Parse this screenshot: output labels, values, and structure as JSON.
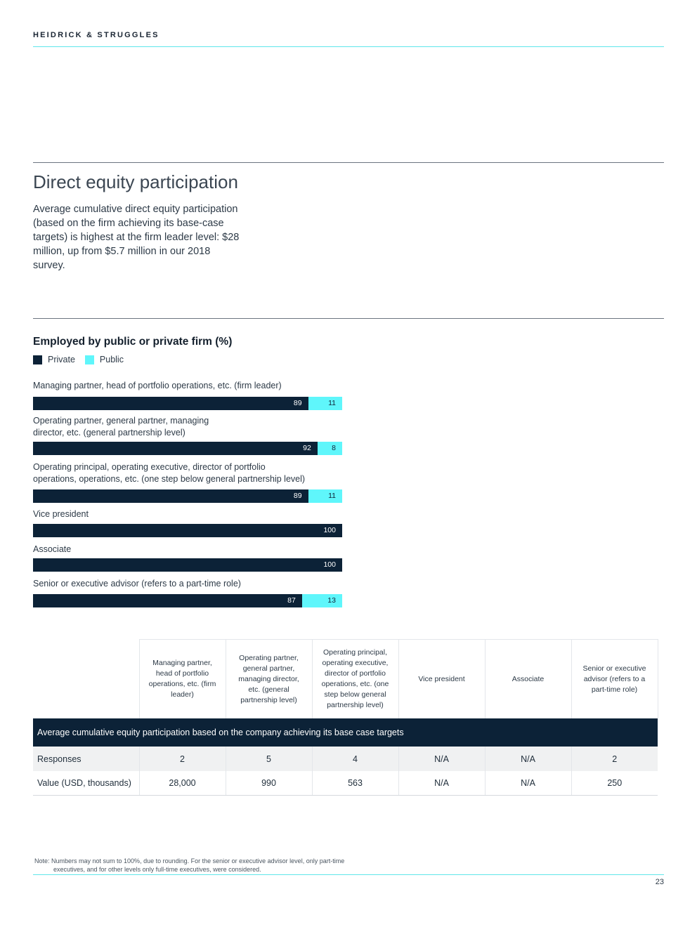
{
  "header": {
    "brand": "HEIDRICK & STRUGGLES"
  },
  "section": {
    "title": "Direct equity participation",
    "intro": "Average cumulative direct equity participation (based on the firm achieving its base-case targets) is highest at the firm leader level: $28 million, up from $5.7 million in our 2018 survey."
  },
  "colors": {
    "private": "#0c2237",
    "public": "#5ff6fb",
    "accent_line": "#5fe6ea"
  },
  "chart_data": {
    "type": "bar",
    "orientation": "horizontal-stacked",
    "title": "Employed by public or private firm (%)",
    "legend": [
      "Private",
      "Public"
    ],
    "xlim": [
      0,
      100
    ],
    "categories": [
      "Managing partner, head of portfolio operations, etc. (firm leader)",
      "Operating partner, general partner, managing director, etc. (general partnership level)",
      "Operating principal, operating executive, director of portfolio operations, operations, etc. (one step below general partnership level)",
      "Vice president",
      "Associate",
      "Senior or executive advisor (refers to a part-time role)"
    ],
    "category_lines": [
      [
        "Managing partner, head of portfolio operations, etc. (firm leader)"
      ],
      [
        "Operating partner, general partner, managing",
        "director, etc. (general partnership level)"
      ],
      [
        "Operating principal, operating executive, director of portfolio",
        "operations, operations, etc. (one step below general partnership level)"
      ],
      [
        "Vice president"
      ],
      [
        "Associate"
      ],
      [
        "Senior or executive advisor (refers to a part-time role)"
      ]
    ],
    "series": [
      {
        "name": "Private",
        "values": [
          89,
          92,
          89,
          100,
          100,
          87
        ]
      },
      {
        "name": "Public",
        "values": [
          11,
          8,
          11,
          0,
          0,
          13
        ]
      }
    ]
  },
  "table": {
    "columns": [
      "Managing partner, head of portfolio operations, etc. (firm leader)",
      "Operating partner, general partner, managing director, etc. (general partnership level)",
      "Operating principal, operating executive, director of portfolio operations, etc. (one step below general partnership level)",
      "Vice president",
      "Associate",
      "Senior or executive advisor (refers to a part-time role)"
    ],
    "section_label": "Average cumulative equity participation based on the company achieving its base case targets",
    "rows": [
      {
        "label": "Responses",
        "values": [
          "2",
          "5",
          "4",
          "N/A",
          "N/A",
          "2"
        ]
      },
      {
        "label": "Value (USD, thousands)",
        "values": [
          "28,000",
          "990",
          "563",
          "N/A",
          "N/A",
          "250"
        ]
      }
    ]
  },
  "footer": {
    "note_line1": "Note: Numbers may not sum to 100%, due to rounding. For the senior or executive advisor level, only part-time",
    "note_line2": "executives, and for other levels only full-time executives, were considered.",
    "page_number": "23"
  }
}
